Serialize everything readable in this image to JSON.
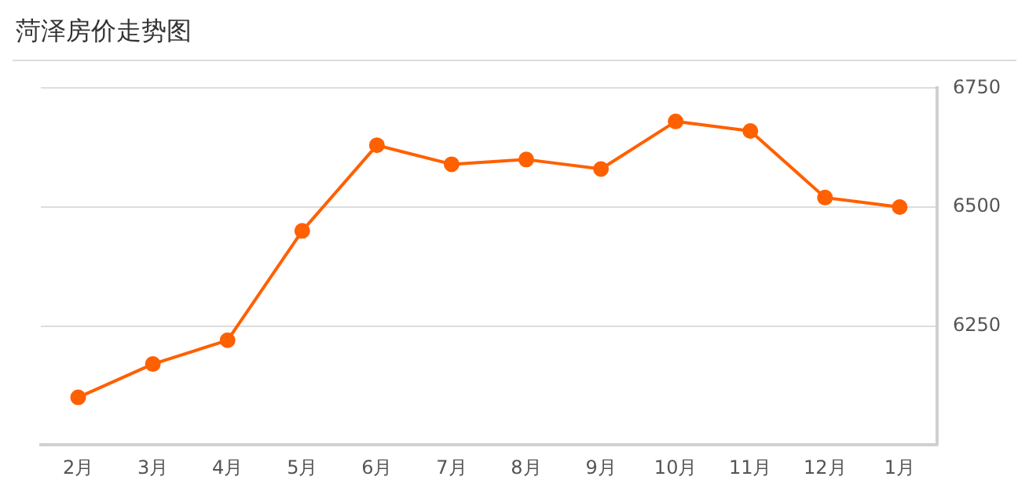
{
  "chart_data": {
    "type": "line",
    "title": "菏泽房价走势图",
    "categories": [
      "2月",
      "3月",
      "4月",
      "5月",
      "6月",
      "7月",
      "8月",
      "9月",
      "10月",
      "11月",
      "12月",
      "1月"
    ],
    "series": [
      {
        "color": "#ff6000",
        "values": [
          6100,
          6170,
          6220,
          6450,
          6630,
          6590,
          6600,
          6580,
          6680,
          6660,
          6520,
          6500
        ]
      }
    ],
    "ylim": [
      6000,
      6750
    ],
    "yticks": [
      6250,
      6500,
      6750
    ],
    "grid": "y",
    "legend": false,
    "marker": "circle",
    "line_style": "solid"
  }
}
